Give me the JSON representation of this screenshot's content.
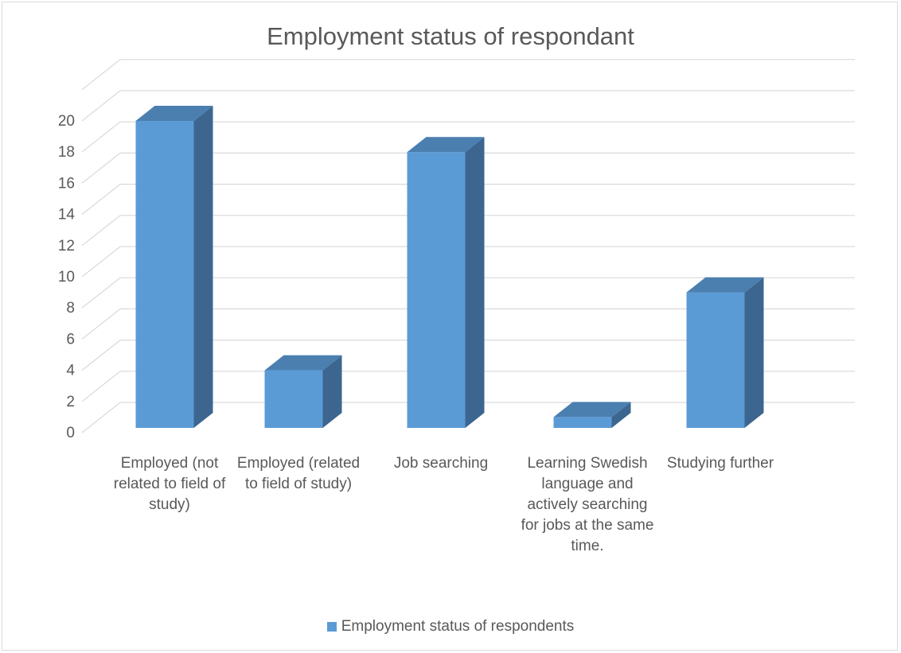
{
  "chart_data": {
    "type": "bar",
    "title": "Employment status of respondant",
    "categories": [
      "Employed (not related to field of study)",
      "Employed (related to field of study)",
      "Job searching",
      "Learning Swedish language and actively searching for jobs at the same time.",
      "Studying further"
    ],
    "series": [
      {
        "name": "Employment status of respondents",
        "values": [
          20,
          4,
          18,
          1,
          9
        ]
      }
    ],
    "ylim": [
      0,
      20
    ],
    "yticks": [
      "0",
      "2",
      "4",
      "6",
      "8",
      "10",
      "12",
      "14",
      "16",
      "18",
      "20"
    ],
    "grid": true,
    "style": "3d-column",
    "legend": "bottom",
    "colors": {
      "front": "#5b9bd5",
      "side": "#3c6690",
      "top": "#4a7fb0",
      "grid": "#d9d9d9",
      "text": "#595959"
    }
  }
}
